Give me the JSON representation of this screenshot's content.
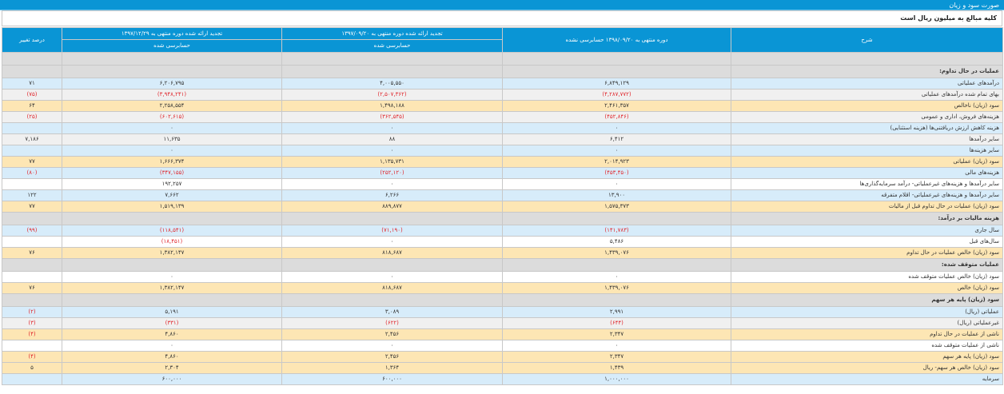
{
  "title": "صورت سود و زیان",
  "note": "کلیه مبالغ به میلیون ریال است",
  "columns": {
    "desc": "شرح",
    "c1_top": "دوره منتهی به ۱۳۹۸/۰۹/۲۰ حسابرسی نشده",
    "c2_top": "تجدید ارائه شده دوره منتهی به ۱۳۹۷/۰۹/۲۰",
    "c2_sub": "حسابرسی شده",
    "c3_top": "تجدید ارائه شده دوره منتهی به ۱۳۹۷/۱۲/۲۹",
    "c3_sub": "حسابرسی شده",
    "change": "درصد تغییر"
  },
  "rows": [
    {
      "type": "spacer"
    },
    {
      "type": "section",
      "label": "عملیات در حال تداوم:"
    },
    {
      "style": "blue",
      "label": "درآمدهای عملیاتی",
      "v1": "۶,۸۴۹,۱۲۹",
      "v2": "۴,۰۰۵,۵۵۰",
      "v3": "۶,۲۰۶,۷۹۵",
      "chg": "۷۱",
      "neg": []
    },
    {
      "style": "gray",
      "label": "بهای تمام شده درآمدهای عملیاتی",
      "v1": "(۴,۲۸۷,۷۷۲)",
      "v2": "(۲,۵۰۷,۳۶۲)",
      "v3": "(۳,۹۴۸,۲۴۱)",
      "chg": "(۷۵)",
      "neg": [
        "v1",
        "v2",
        "v3",
        "chg"
      ]
    },
    {
      "style": "gold",
      "label": "سود (زیان) ناخالص",
      "v1": "۲,۴۶۱,۳۵۷",
      "v2": "۱,۴۹۸,۱۸۸",
      "v3": "۲,۲۵۸,۵۵۴",
      "chg": "۶۴",
      "neg": []
    },
    {
      "style": "gray",
      "label": "هزینه‌های فروش، اداری و عمومی",
      "v1": "(۴۵۲,۸۴۶)",
      "v2": "(۳۶۲,۵۴۵)",
      "v3": "(۶۰۲,۶۱۵)",
      "chg": "(۲۵)",
      "neg": [
        "v1",
        "v2",
        "v3",
        "chg"
      ]
    },
    {
      "style": "blue",
      "label": "هزینه کاهش ارزش دریافتنی‌ها (هزینه استثنایی)",
      "v1": "۰",
      "v2": "۰",
      "v3": "۰",
      "chg": "",
      "neg": []
    },
    {
      "style": "gray",
      "label": "سایر درآمدها",
      "v1": "۶,۴۱۲",
      "v2": "۸۸",
      "v3": "۱۱,۶۳۵",
      "chg": "۷,۱۸۶",
      "neg": []
    },
    {
      "style": "blue",
      "label": "سایر هزینه‌ها",
      "v1": "۰",
      "v2": "۰",
      "v3": "۰",
      "chg": "",
      "neg": []
    },
    {
      "style": "gold",
      "label": "سود (زیان) عملیاتی",
      "v1": "۲,۰۱۴,۹۲۳",
      "v2": "۱,۱۳۵,۷۳۱",
      "v3": "۱,۶۶۶,۳۷۴",
      "chg": "۷۷",
      "neg": []
    },
    {
      "style": "blue",
      "label": "هزینه‌های مالی",
      "v1": "(۴۵۳,۴۵۰)",
      "v2": "(۲۵۲,۱۲۰)",
      "v3": "(۳۴۷,۱۵۵)",
      "chg": "(۸۰)",
      "neg": [
        "v1",
        "v2",
        "v3",
        "chg"
      ]
    },
    {
      "style": "white",
      "label": "سایر درآمدها و هزینه‌های غیرعملیاتی- درآمد سرمایه‌گذاری‌ها",
      "v1": "۰",
      "v2": "۰",
      "v3": "۱۹۲,۲۵۷",
      "chg": "",
      "neg": []
    },
    {
      "style": "blue",
      "label": "سایر درآمدها و هزینه‌های غیرعملیاتی- اقلام متفرقه",
      "v1": "۱۳,۹۰۰",
      "v2": "۶,۲۶۶",
      "v3": "۷,۶۶۲",
      "chg": "۱۲۲",
      "neg": []
    },
    {
      "style": "gold",
      "label": "سود (زیان) عملیات در حال تداوم قبل از مالیات",
      "v1": "۱,۵۷۵,۳۷۳",
      "v2": "۸۸۹,۸۷۷",
      "v3": "۱,۵۱۹,۱۳۹",
      "chg": "۷۷",
      "neg": []
    },
    {
      "type": "section",
      "label": "هزینه مالیات بر درآمد:"
    },
    {
      "style": "blue",
      "label": "سال جاری",
      "v1": "(۱۴۱,۷۸۳)",
      "v2": "(۷۱,۱۹۰)",
      "v3": "(۱۱۸,۵۴۱)",
      "chg": "(۹۹)",
      "neg": [
        "v1",
        "v2",
        "v3",
        "chg"
      ]
    },
    {
      "style": "white",
      "label": "سال‌های قبل",
      "v1": "۵,۴۸۶",
      "v2": "۰",
      "v3": "(۱۸,۴۵۱)",
      "chg": "",
      "neg": [
        "v3"
      ]
    },
    {
      "style": "gold",
      "label": "سود (زیان) خالص عملیات در حال تداوم",
      "v1": "۱,۴۳۹,۰۷۶",
      "v2": "۸۱۸,۶۸۷",
      "v3": "۱,۳۸۲,۱۴۷",
      "chg": "۷۶",
      "neg": []
    },
    {
      "type": "section",
      "label": "عملیات متوقف شده:"
    },
    {
      "style": "white",
      "label": "سود (زیان) خالص عملیات متوقف شده",
      "v1": "۰",
      "v2": "۰",
      "v3": "۰",
      "chg": "",
      "neg": []
    },
    {
      "style": "gold",
      "label": "سود (زیان) خالص",
      "v1": "۱,۴۳۹,۰۷۶",
      "v2": "۸۱۸,۶۸۷",
      "v3": "۱,۳۸۲,۱۴۷",
      "chg": "۷۶",
      "neg": []
    },
    {
      "type": "section",
      "label": "سود (زیان) پایه هر سهم"
    },
    {
      "style": "blue",
      "label": "عملیاتی (ریال)",
      "v1": "۲,۹۹۱",
      "v2": "۳,۰۸۹",
      "v3": "۵,۱۹۱",
      "chg": "(۲)",
      "neg": [
        "chg"
      ]
    },
    {
      "style": "gray",
      "label": "غیرعملیاتی (ریال)",
      "v1": "(۶۴۴)",
      "v2": "(۶۲۲)",
      "v3": "(۳۳۱)",
      "chg": "(۳)",
      "neg": [
        "v1",
        "v2",
        "v3",
        "chg"
      ]
    },
    {
      "style": "gold",
      "label": "ناشی از عملیات در حال تداوم",
      "v1": "۲,۳۴۷",
      "v2": "۲,۴۵۶",
      "v3": "۴,۸۶۰",
      "chg": "(۴)",
      "neg": [
        "chg"
      ]
    },
    {
      "style": "white",
      "label": "ناشی از عملیات متوقف شده",
      "v1": "۰",
      "v2": "۰",
      "v3": "۰",
      "chg": "",
      "neg": []
    },
    {
      "style": "gold",
      "label": "سود (زیان) پایه هر سهم",
      "v1": "۲,۳۴۷",
      "v2": "۲,۴۵۶",
      "v3": "۴,۸۶۰",
      "chg": "(۴)",
      "neg": [
        "chg"
      ]
    },
    {
      "style": "gold",
      "label": "سود (زیان) خالص هر سهم- ریال",
      "v1": "۱,۴۳۹",
      "v2": "۱,۳۶۴",
      "v3": "۲,۳۰۴",
      "chg": "۵",
      "neg": []
    },
    {
      "style": "blue",
      "label": "سرمایه",
      "v1": "۱,۰۰۰,۰۰۰",
      "v2": "۶۰۰,۰۰۰",
      "v3": "۶۰۰,۰۰۰",
      "chg": "",
      "neg": []
    }
  ]
}
